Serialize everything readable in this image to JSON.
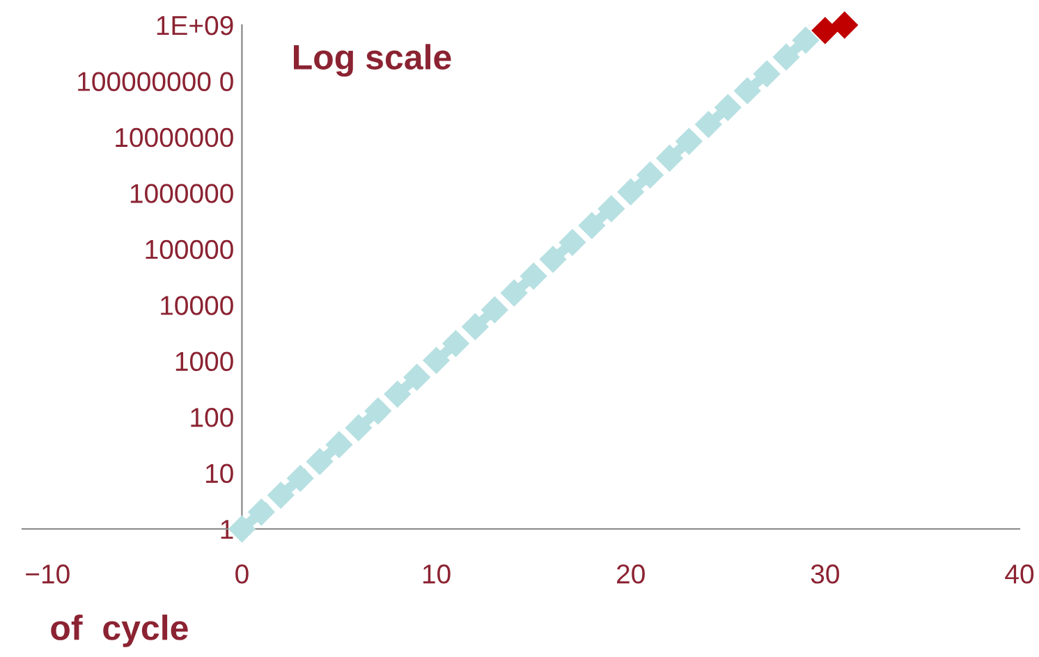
{
  "chart_data": {
    "type": "line",
    "xlabel": "of  cycle",
    "annotations": [
      "Log scale"
    ],
    "log": true,
    "grid": false,
    "legend": false,
    "marker": "diamond",
    "line_style": "dashed",
    "xlim": [
      -11.3,
      40
    ],
    "xticks": [
      {
        "value": -10,
        "label": "−10"
      },
      0,
      10,
      20,
      30,
      40
    ],
    "ylim": [
      1,
      1000000000
    ],
    "yticks": [
      {
        "value": 1,
        "label": "1"
      },
      {
        "value": 10,
        "label": "10"
      },
      {
        "value": 100,
        "label": "100"
      },
      {
        "value": 1000,
        "label": "1000"
      },
      {
        "value": 10000,
        "label": "10000"
      },
      {
        "value": 100000,
        "label": "100000"
      },
      {
        "value": 1000000,
        "label": "1000000"
      },
      {
        "value": 10000000,
        "label": "10000000"
      },
      {
        "value": 100000000,
        "label": "100000000 0"
      },
      {
        "value": 1000000000,
        "label": "1E+09"
      }
    ],
    "series": [
      {
        "color": "#b7e0e2",
        "x": [
          0,
          1,
          2,
          3,
          4,
          5,
          6,
          7,
          8,
          9,
          10,
          11,
          12,
          13,
          14,
          15,
          16,
          17,
          18,
          19,
          20,
          21,
          22,
          23,
          24,
          25,
          26,
          27,
          28,
          29
        ],
        "values": [
          1,
          2,
          4,
          8,
          16,
          32,
          64,
          128,
          256,
          512,
          1024,
          2048,
          4096,
          8192,
          16384,
          32768,
          65536,
          131072,
          262144,
          524288,
          1048576,
          2097152,
          4194304,
          8388608,
          16777216,
          33554432,
          67108864,
          134217728,
          268435456,
          536870912
        ]
      },
      {
        "type": "scatter",
        "color": "#c00000",
        "x": [
          30,
          31
        ],
        "values": [
          800000000,
          1000000000
        ]
      }
    ]
  }
}
